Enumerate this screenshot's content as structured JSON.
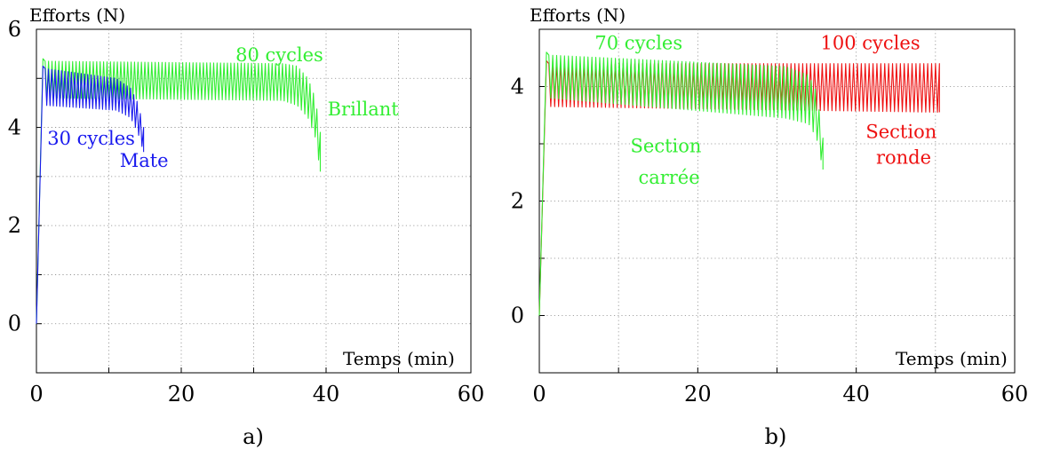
{
  "chart_data": [
    {
      "type": "line",
      "caption": "a)",
      "ylabel": "Efforts (N)",
      "xlabel": "Temps (min)",
      "xlim": [
        0,
        60
      ],
      "ylim": [
        -1,
        6
      ],
      "x_ticks": [
        0,
        20,
        40,
        60
      ],
      "y_ticks": [
        0,
        2,
        4,
        6
      ],
      "grid": "dotted",
      "series": [
        {
          "color": "#33ee33",
          "points_x": [
            0,
            0.9,
            1.2,
            34,
            36,
            37.5,
            38.5,
            39.2
          ],
          "upper": [
            0,
            5.4,
            5.35,
            5.3,
            5.25,
            5.0,
            4.6,
            3.9
          ],
          "lower": [
            0,
            5.0,
            4.6,
            4.55,
            4.45,
            4.2,
            3.8,
            3.1
          ],
          "cycles": 80
        },
        {
          "color": "#1a1aee",
          "points_x": [
            0,
            0.9,
            1.2,
            11,
            13,
            14,
            14.8
          ],
          "upper": [
            0,
            5.25,
            5.2,
            5.0,
            4.8,
            4.5,
            4.0
          ],
          "lower": [
            0,
            4.9,
            4.45,
            4.35,
            4.2,
            3.9,
            3.5
          ],
          "cycles": 30
        }
      ],
      "annotations": [
        {
          "text": "80 cycles",
          "x": 27.5,
          "y": 5.35,
          "color": "#33ee33"
        },
        {
          "text": "Brillant",
          "x": 40.2,
          "y": 4.25,
          "color": "#33ee33"
        },
        {
          "text": "30 cycles",
          "x": 1.5,
          "y": 3.65,
          "color": "#1a1aee"
        },
        {
          "text": "Mate",
          "x": 11.5,
          "y": 3.2,
          "color": "#1a1aee"
        }
      ]
    },
    {
      "type": "line",
      "caption": "b)",
      "ylabel": "Efforts (N)",
      "xlabel": "Temps (min)",
      "xlim": [
        0,
        60
      ],
      "ylim": [
        -1,
        5
      ],
      "x_ticks": [
        0,
        20,
        40,
        60
      ],
      "y_ticks": [
        0,
        2,
        4
      ],
      "grid": "dotted",
      "series": [
        {
          "color": "#ee1111",
          "points_x": [
            0,
            0.9,
            1.2,
            50.5
          ],
          "upper": [
            0,
            4.45,
            4.4,
            4.4
          ],
          "lower": [
            0,
            3.8,
            3.65,
            3.55
          ],
          "cycles": 100
        },
        {
          "color": "#33ee33",
          "points_x": [
            0,
            0.9,
            1.2,
            31,
            34,
            35,
            35.8
          ],
          "upper": [
            0,
            4.6,
            4.55,
            4.35,
            4.2,
            3.9,
            3.1
          ],
          "lower": [
            0,
            3.9,
            3.8,
            3.45,
            3.35,
            3.1,
            2.55
          ],
          "cycles": 70
        }
      ],
      "annotations": [
        {
          "text": "70 cycles",
          "x": 7,
          "y": 4.65,
          "color": "#33ee33"
        },
        {
          "text": "100 cycles",
          "x": 35.5,
          "y": 4.65,
          "color": "#ee1111"
        },
        {
          "text": "Section",
          "x": 11.5,
          "y": 2.85,
          "color": "#33ee33"
        },
        {
          "text": "carrée",
          "x": 12.5,
          "y": 2.3,
          "color": "#33ee33"
        },
        {
          "text": "Section",
          "x": 41.2,
          "y": 3.1,
          "color": "#ee1111"
        },
        {
          "text": "ronde",
          "x": 42.5,
          "y": 2.65,
          "color": "#ee1111"
        }
      ]
    }
  ]
}
